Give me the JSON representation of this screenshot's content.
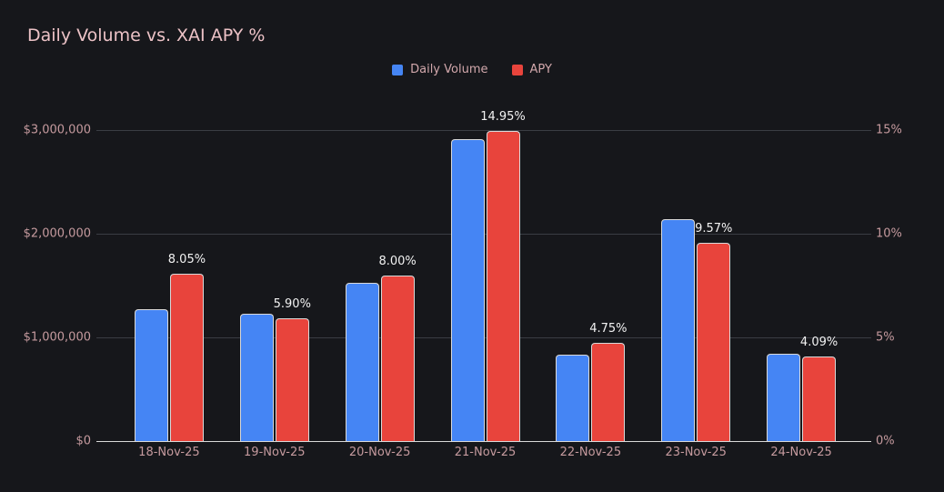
{
  "title": "Daily Volume vs. XAI APY %",
  "colors": {
    "background": "#16171b",
    "title_text": "#ecc2c6",
    "axis_label_text": "#c59a9e",
    "legend_text": "#d2a8ac",
    "value_label_text": "#f2f2f2",
    "gridline": "#3a3d44",
    "axis_line": "#d9d9d9",
    "volume_bar": "#4585f4",
    "apy_bar": "#e8443c"
  },
  "chart_data": {
    "type": "bar",
    "title": "Daily Volume vs. XAI APY %",
    "grid": true,
    "legend_position": "top",
    "categories": [
      "18-Nov-25",
      "19-Nov-25",
      "20-Nov-25",
      "21-Nov-25",
      "22-Nov-25",
      "23-Nov-25",
      "24-Nov-25"
    ],
    "series": [
      {
        "name": "Daily Volume",
        "axis": "left",
        "color": "#4585f4",
        "values": [
          1275000,
          1230000,
          1530000,
          2910000,
          835000,
          2140000,
          845000
        ]
      },
      {
        "name": "APY",
        "axis": "right",
        "color": "#e8443c",
        "values": [
          8.05,
          5.9,
          8.0,
          14.95,
          4.75,
          9.57,
          4.09
        ],
        "data_labels": [
          "8.05%",
          "5.90%",
          "8.00%",
          "14.95%",
          "4.75%",
          "9.57%",
          "4.09%"
        ]
      }
    ],
    "left_axis": {
      "min": 0,
      "max": 3000000,
      "ticks": [
        "$3,000,000",
        "$2,000,000",
        "$1,000,000",
        "$0"
      ]
    },
    "right_axis": {
      "min": 0,
      "max": 15,
      "ticks": [
        "15%",
        "10%",
        "5%",
        "0%"
      ]
    }
  }
}
